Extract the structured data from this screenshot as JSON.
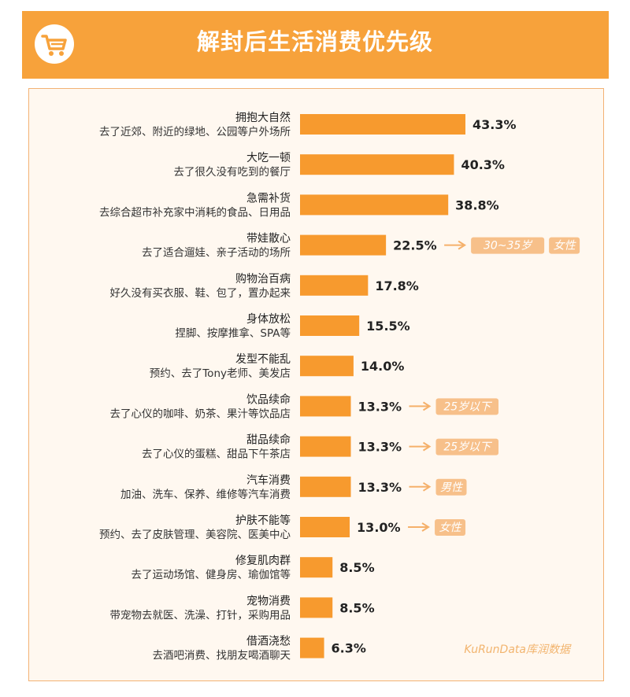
{
  "header": {
    "title": "解封后生活消费优先级",
    "icon": "shopping-cart-icon"
  },
  "colors": {
    "accent": "#f7a23b",
    "bar": "#f79a2e",
    "tag_bg": "#f7c08a",
    "arrow": "#f5b06a",
    "panel_bg": "#fff8f0"
  },
  "chart_data": {
    "type": "bar",
    "orientation": "horizontal",
    "value_unit": "%",
    "categories": [
      {
        "name": "拥抱大自然",
        "desc": "去了近郊、附近的绿地、公园等户外场所",
        "value": 43.3,
        "label": "43.3%",
        "tags": []
      },
      {
        "name": "大吃一顿",
        "desc": "去了很久没有吃到的餐厅",
        "value": 40.3,
        "label": "40.3%",
        "tags": []
      },
      {
        "name": "急需补货",
        "desc": "去综合超市补充家中消耗的食品、日用品",
        "value": 38.8,
        "label": "38.8%",
        "tags": []
      },
      {
        "name": "带娃散心",
        "desc": "去了适合遛娃、亲子活动的场所",
        "value": 22.5,
        "label": "22.5%",
        "tags": [
          "30~35岁",
          "女性"
        ]
      },
      {
        "name": "购物治百病",
        "desc": "好久没有买衣服、鞋、包了，置办起来",
        "value": 17.8,
        "label": "17.8%",
        "tags": []
      },
      {
        "name": "身体放松",
        "desc": "捏脚、按摩推拿、SPA等",
        "value": 15.5,
        "label": "15.5%",
        "tags": []
      },
      {
        "name": "发型不能乱",
        "desc": "预约、去了Tony老师、美发店",
        "value": 14.0,
        "label": "14.0%",
        "tags": []
      },
      {
        "name": "饮品续命",
        "desc": "去了心仪的咖啡、奶茶、果汁等饮品店",
        "value": 13.3,
        "label": "13.3%",
        "tags": [
          "25岁以下"
        ]
      },
      {
        "name": "甜品续命",
        "desc": "去了心仪的蛋糕、甜品下午茶店",
        "value": 13.3,
        "label": "13.3%",
        "tags": [
          "25岁以下"
        ]
      },
      {
        "name": "汽车消费",
        "desc": "加油、洗车、保养、维修等汽车消费",
        "value": 13.3,
        "label": "13.3%",
        "tags": [
          "男性"
        ]
      },
      {
        "name": "护肤不能等",
        "desc": "预约、去了皮肤管理、美容院、医美中心",
        "value": 13.0,
        "label": "13.0%",
        "tags": [
          "女性"
        ]
      },
      {
        "name": "修复肌肉群",
        "desc": "去了运动场馆、健身房、瑜伽馆等",
        "value": 8.5,
        "label": "8.5%",
        "tags": []
      },
      {
        "name": "宠物消费",
        "desc": "带宠物去就医、洗澡、打针，采购用品",
        "value": 8.5,
        "label": "8.5%",
        "tags": []
      },
      {
        "name": "借酒浇愁",
        "desc": "去酒吧消费、找朋友喝酒聊天",
        "value": 6.3,
        "label": "6.3%",
        "tags": []
      }
    ],
    "xlim": [
      0,
      100
    ],
    "grid": false,
    "legend": "none"
  },
  "watermark": "KuRunData库润数据"
}
